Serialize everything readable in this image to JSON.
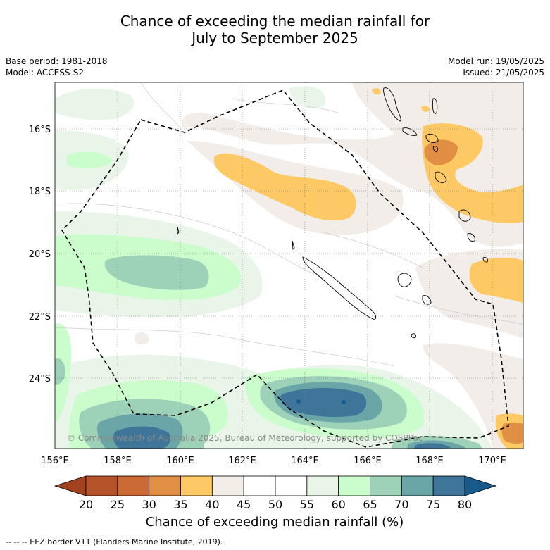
{
  "title": {
    "line1": "Chance of exceeding the median rainfall for",
    "line2": "July to September 2025"
  },
  "meta_left": {
    "base_period": "Base period: 1981-2018",
    "model": "Model: ACCESS-S2"
  },
  "meta_right": {
    "model_run": "Model run: 19/05/2025",
    "issued": "Issued: 21/05/2025"
  },
  "map": {
    "lat_labels": [
      "16°S",
      "18°S",
      "20°S",
      "22°S",
      "24°S"
    ],
    "lon_labels": [
      "156°E",
      "158°E",
      "160°E",
      "162°E",
      "164°E",
      "166°E",
      "168°E",
      "170°E"
    ],
    "copyright": "© Commonwealth of Australia 2025, Bureau of Meteorology, supported by COSPPac"
  },
  "colorbar": {
    "ticks": [
      "20",
      "25",
      "30",
      "35",
      "40",
      "45",
      "50",
      "55",
      "60",
      "65",
      "70",
      "75",
      "80"
    ],
    "colors": [
      "#a3421f",
      "#b5532a",
      "#cc6a35",
      "#e08f45",
      "#fdc965",
      "#f2ede8",
      "#ffffff",
      "#ffffff",
      "#e8f5e8",
      "#cbfccb",
      "#9dd1b8",
      "#6aa6a8",
      "#3e7598",
      "#185a8c"
    ],
    "label": "Chance of exceeding median rainfall (%)"
  },
  "footnote": "--  --  -- EEZ border V11 (Flanders Marine Institute, 2019)."
}
